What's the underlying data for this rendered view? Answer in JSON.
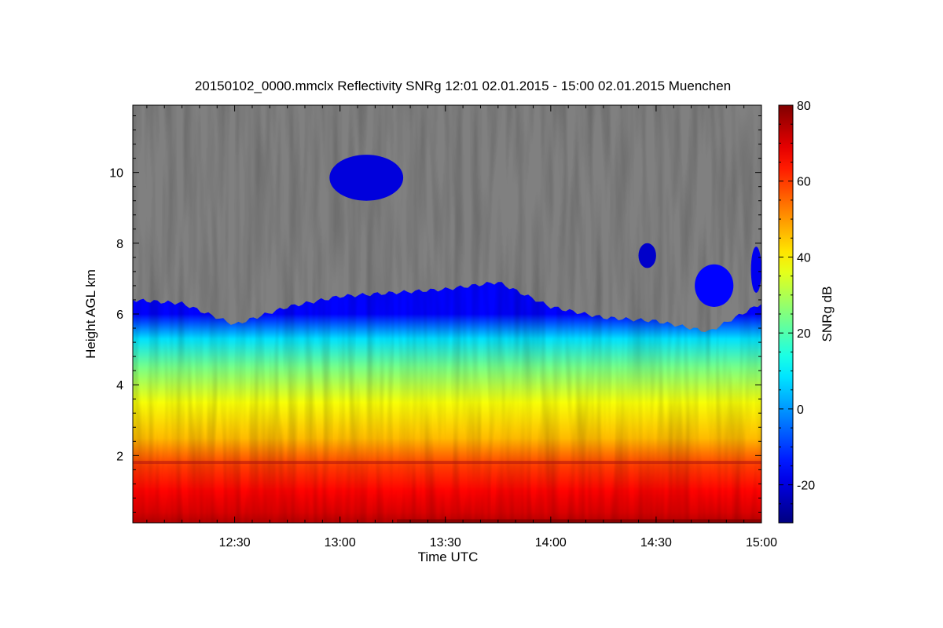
{
  "chart_data": {
    "type": "heatmap",
    "title": "20150102_0000.mmclx Reflectivity SNRg   12:01 02.01.2015 - 15:00 02.01.2015 Muenchen",
    "xlabel": "Time UTC",
    "ylabel": "Height AGL km",
    "colorbar_label": "SNRg dB",
    "x_range": [
      "12:01",
      "15:00"
    ],
    "x_ticks": [
      "12:30",
      "13:00",
      "13:30",
      "14:00",
      "14:30",
      "15:00"
    ],
    "y_range": [
      0.1,
      11.9
    ],
    "y_ticks": [
      "2",
      "4",
      "6",
      "8",
      "10"
    ],
    "colorbar_range": [
      -30,
      80
    ],
    "colorbar_ticks": [
      "-20",
      "0",
      "20",
      "40",
      "60",
      "80"
    ],
    "colormap": "jet",
    "no_signal_color": "#808080",
    "profile": [
      {
        "height_km": 0.1,
        "snr_db": 74
      },
      {
        "height_km": 0.4,
        "snr_db": 70
      },
      {
        "height_km": 1.0,
        "snr_db": 66
      },
      {
        "height_km": 1.7,
        "snr_db": 60
      },
      {
        "height_km": 2.5,
        "snr_db": 46
      },
      {
        "height_km": 3.5,
        "snr_db": 38
      },
      {
        "height_km": 4.5,
        "snr_db": 24
      },
      {
        "height_km": 5.3,
        "snr_db": 8
      },
      {
        "height_km": 6.0,
        "snr_db": -16
      }
    ],
    "cloud_top_km": [
      {
        "time": "12:01",
        "value": 6.4
      },
      {
        "time": "12:15",
        "value": 6.3
      },
      {
        "time": "12:30",
        "value": 5.7
      },
      {
        "time": "12:45",
        "value": 6.2
      },
      {
        "time": "13:00",
        "value": 6.5
      },
      {
        "time": "13:15",
        "value": 6.6
      },
      {
        "time": "13:30",
        "value": 6.7
      },
      {
        "time": "13:45",
        "value": 6.9
      },
      {
        "time": "14:00",
        "value": 6.2
      },
      {
        "time": "14:15",
        "value": 5.9
      },
      {
        "time": "14:30",
        "value": 5.8
      },
      {
        "time": "14:45",
        "value": 5.5
      },
      {
        "time": "15:00",
        "value": 6.3
      }
    ],
    "upper_echoes": [
      {
        "time_start": "12:57",
        "time_end": "13:18",
        "height_bottom_km": 9.2,
        "height_top_km": 10.5,
        "snr_db": -20
      },
      {
        "time_start": "14:41",
        "time_end": "14:52",
        "height_bottom_km": 6.2,
        "height_top_km": 7.4,
        "snr_db": -16
      },
      {
        "time_start": "14:57",
        "time_end": "15:00",
        "height_bottom_km": 6.6,
        "height_top_km": 7.9,
        "snr_db": -18
      },
      {
        "time_start": "14:25",
        "time_end": "14:30",
        "height_bottom_km": 7.3,
        "height_top_km": 8.0,
        "snr_db": -22
      }
    ]
  }
}
